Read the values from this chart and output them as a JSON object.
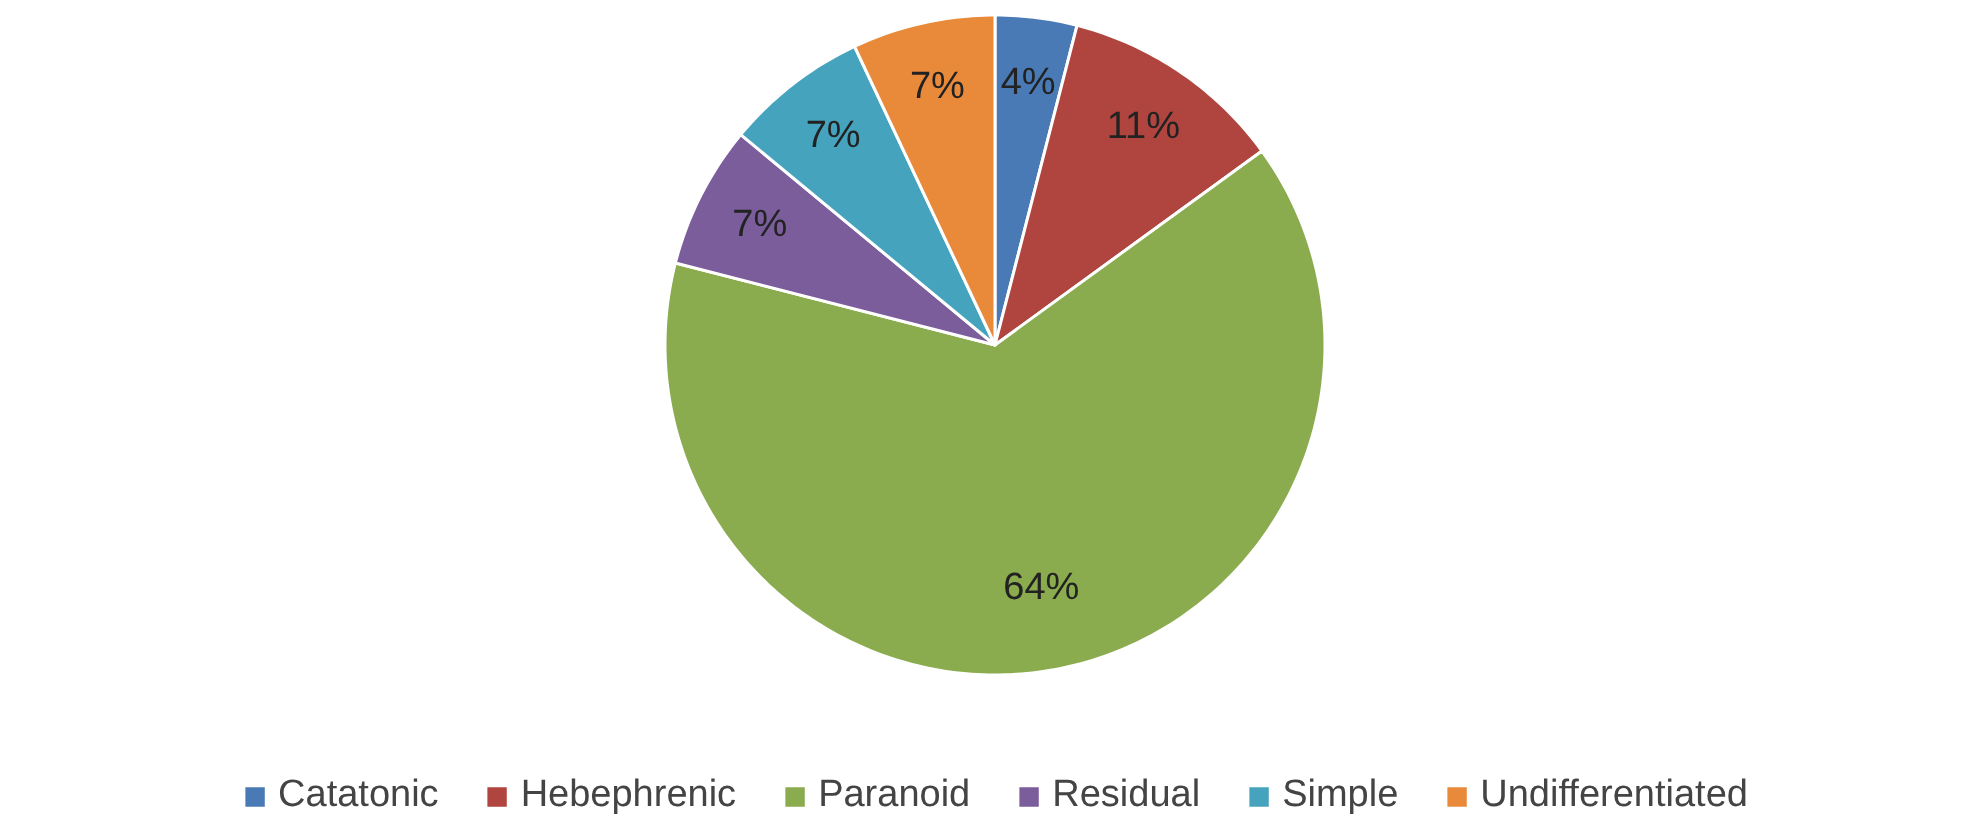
{
  "chart_data": {
    "type": "pie",
    "categories": [
      "Catatonic",
      "Hebephrenic",
      "Paranoid",
      "Residual",
      "Simple",
      "Undifferentiated"
    ],
    "values": [
      4,
      11,
      64,
      7,
      7,
      7
    ],
    "colors": [
      "#4a7ab5",
      "#b0453f",
      "#8aab4e",
      "#7b5d9c",
      "#45a3bd",
      "#e98a3a"
    ],
    "value_labels": [
      "4%",
      "11%",
      "64%",
      "7%",
      "7%",
      "7%"
    ],
    "legend": "bottom"
  }
}
